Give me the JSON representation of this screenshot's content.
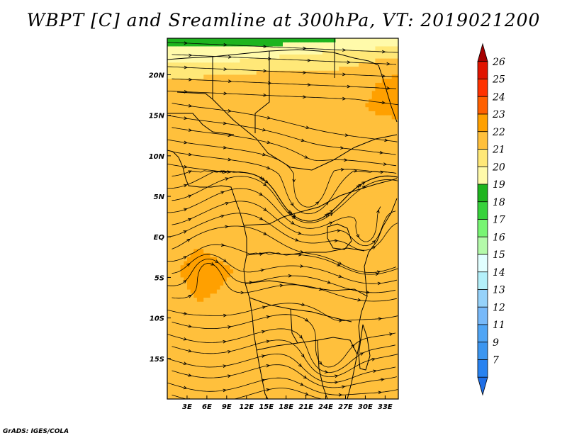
{
  "title": "WBPT [C] and Sreamline at 300hPa, VT: 2019021200",
  "credit": "GrADS: IGES/COLA",
  "chart_data": {
    "type": "heatmap",
    "title": "WBPT [C] and Sreamline at 300hPa, VT: 2019021200",
    "variable": "WBPT [C]",
    "level": "300hPa",
    "valid_time": "2019021200",
    "overlay": "streamlines",
    "xlabel": "",
    "ylabel": "",
    "x_ticks": [
      {
        "value": 3,
        "label": "3E"
      },
      {
        "value": 6,
        "label": "6E"
      },
      {
        "value": 9,
        "label": "9E"
      },
      {
        "value": 12,
        "label": "12E"
      },
      {
        "value": 15,
        "label": "15E"
      },
      {
        "value": 18,
        "label": "18E"
      },
      {
        "value": 21,
        "label": "21E"
      },
      {
        "value": 24,
        "label": "24E"
      },
      {
        "value": 27,
        "label": "27E"
      },
      {
        "value": 30,
        "label": "30E"
      },
      {
        "value": 33,
        "label": "33E"
      }
    ],
    "y_ticks": [
      {
        "value": 20,
        "label": "20N"
      },
      {
        "value": 15,
        "label": "15N"
      },
      {
        "value": 10,
        "label": "10N"
      },
      {
        "value": 5,
        "label": "5N"
      },
      {
        "value": 0,
        "label": "EQ"
      },
      {
        "value": -5,
        "label": "5S"
      },
      {
        "value": -10,
        "label": "10S"
      },
      {
        "value": -15,
        "label": "15S"
      }
    ],
    "xlim": [
      0,
      35
    ],
    "ylim": [
      -20,
      24.5
    ],
    "colorbar": {
      "levels": [
        "7",
        "9",
        "11",
        "12",
        "13",
        "14",
        "15",
        "16",
        "17",
        "18",
        "19",
        "20",
        "21",
        "22",
        "23",
        "24",
        "25",
        "26"
      ],
      "colors": [
        "#1e6ee6",
        "#2882f0",
        "#3c96f0",
        "#50a5f5",
        "#78b9f9",
        "#96d2fa",
        "#b4f0fa",
        "#e1ffff",
        "#b4faaa",
        "#78f573",
        "#37d23c",
        "#1eb41e",
        "#fffaaa",
        "#ffe878",
        "#ffc03c",
        "#ffa000",
        "#ff6000",
        "#ff3200",
        "#e11400",
        "#a50000"
      ],
      "extend": "both"
    },
    "field": {
      "x": [
        0,
        5,
        10,
        15,
        20,
        25,
        30,
        35
      ],
      "y": [
        24.5,
        22,
        19,
        16,
        12,
        8,
        4,
        0,
        -4,
        -8,
        -12,
        -16,
        -20
      ],
      "values": [
        [
          19.4,
          19.3,
          19.2,
          19.4,
          19.6,
          19.8,
          20.0,
          20.2
        ],
        [
          20.8,
          20.7,
          20.8,
          21.0,
          21.4,
          21.6,
          21.8,
          22.2
        ],
        [
          22.2,
          22.4,
          22.6,
          22.8,
          22.6,
          22.4,
          22.8,
          23.4
        ],
        [
          22.6,
          22.7,
          22.8,
          22.8,
          22.6,
          22.6,
          23.0,
          23.4
        ],
        [
          22.4,
          22.8,
          22.6,
          22.4,
          22.6,
          22.7,
          22.6,
          22.2
        ],
        [
          22.6,
          23.0,
          22.8,
          22.6,
          22.7,
          22.6,
          22.2,
          22.0
        ],
        [
          22.6,
          22.8,
          22.6,
          22.4,
          22.2,
          22.0,
          22.3,
          22.6
        ],
        [
          22.8,
          22.9,
          22.6,
          22.5,
          22.3,
          22.4,
          22.6,
          22.7
        ],
        [
          22.9,
          23.2,
          23.0,
          22.9,
          22.6,
          22.6,
          22.8,
          22.8
        ],
        [
          22.8,
          23.0,
          22.9,
          22.9,
          22.7,
          22.6,
          22.8,
          22.9
        ],
        [
          22.7,
          22.8,
          22.8,
          22.9,
          22.8,
          22.7,
          22.6,
          22.8
        ],
        [
          22.6,
          22.7,
          22.8,
          22.9,
          22.8,
          22.7,
          22.6,
          22.6
        ],
        [
          22.4,
          22.6,
          22.7,
          22.8,
          22.8,
          22.7,
          22.6,
          22.5
        ]
      ]
    }
  }
}
